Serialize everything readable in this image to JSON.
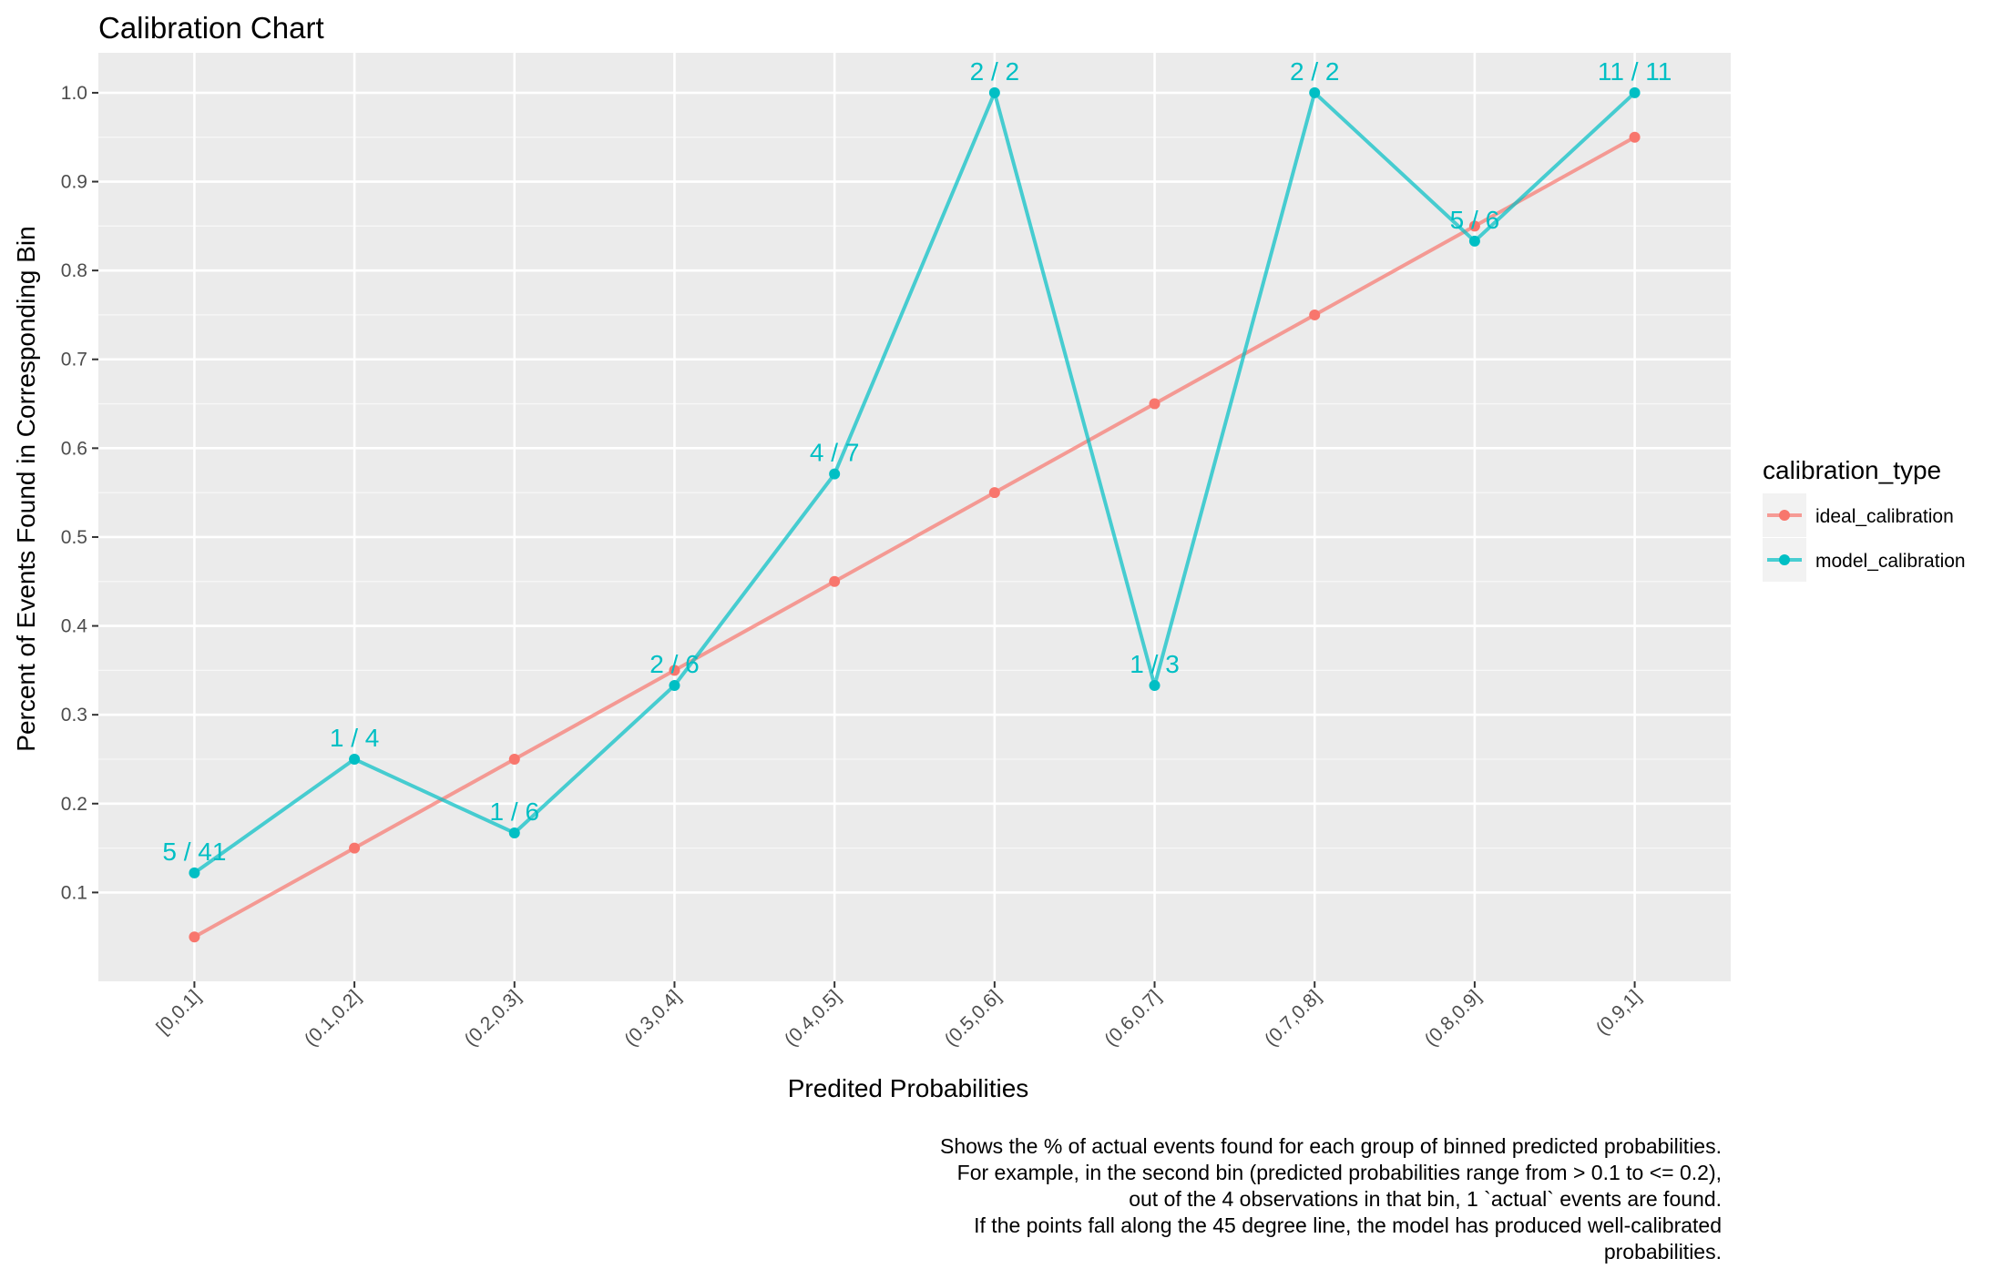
{
  "chart_data": {
    "type": "line",
    "title": "Calibration Chart",
    "xlabel": "Predited Probabilities",
    "ylabel": "Percent of Events Found in Corresponding Bin",
    "categories": [
      "[0,0.1]",
      "(0.1,0.2]",
      "(0.2,0.3]",
      "(0.3,0.4]",
      "(0.4,0.5]",
      "(0.5,0.6]",
      "(0.6,0.7]",
      "(0.7,0.8]",
      "(0.8,0.9]",
      "(0.9,1]"
    ],
    "ylim": [
      0.0,
      1.045
    ],
    "yticks": [
      0.1,
      0.2,
      0.3,
      0.4,
      0.5,
      0.6,
      0.7,
      0.8,
      0.9,
      1.0
    ],
    "ytick_labels": [
      "0.1",
      "0.2",
      "0.3",
      "0.4",
      "0.5",
      "0.6",
      "0.7",
      "0.8",
      "0.9",
      "1.0"
    ],
    "grid": true,
    "legend": {
      "title": "calibration_type",
      "placement": "right"
    },
    "series": [
      {
        "name": "ideal_calibration",
        "color": "#F8766D",
        "values": [
          0.05,
          0.15,
          0.25,
          0.35,
          0.45,
          0.55,
          0.65,
          0.75,
          0.85,
          0.95
        ],
        "labels": null
      },
      {
        "name": "model_calibration",
        "color": "#00BFC4",
        "values": [
          0.122,
          0.25,
          0.167,
          0.333,
          0.571,
          1.0,
          0.333,
          1.0,
          0.833,
          1.0
        ],
        "labels": [
          "5 / 41",
          "1 / 4",
          "1 / 6",
          "2 / 6",
          "4 / 7",
          "2 / 2",
          "1 / 3",
          "2 / 2",
          "5 / 6",
          "11 / 11"
        ]
      }
    ],
    "caption": [
      "Shows the % of actual events found for each group of binned predicted probabilities.",
      "For example, in the second bin (predicted probabilities range from > 0.1 to <= 0.2),",
      "out of the 4 observations in that bin, 1 `actual` events are found.",
      "If the points fall along the 45 degree line, the model has produced well-calibrated",
      "probabilities."
    ]
  }
}
